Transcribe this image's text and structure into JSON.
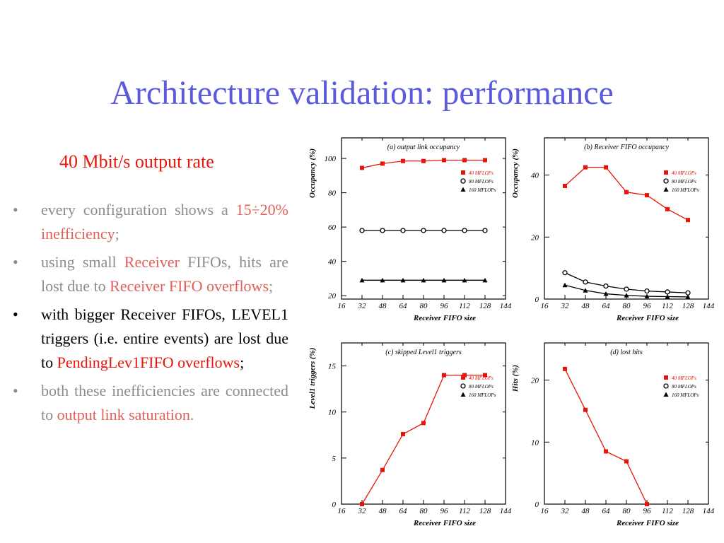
{
  "slide": {
    "title": "Architecture validation: performance",
    "subtitle": "40 Mbit/s output rate"
  },
  "bullets": [
    {
      "parts": [
        {
          "text": "every configuration shows a ",
          "style": "normal"
        },
        {
          "text": "15÷20% inefficiency",
          "style": "hl"
        },
        {
          "text": ";",
          "style": "normal"
        }
      ],
      "tone": "grey"
    },
    {
      "parts": [
        {
          "text": "using small ",
          "style": "normal"
        },
        {
          "text": "Receiver",
          "style": "hl"
        },
        {
          "text": " FIFOs, hits are lost due to ",
          "style": "normal"
        },
        {
          "text": "Receiver FIFO overflows",
          "style": "hl"
        },
        {
          "text": ";",
          "style": "normal"
        }
      ],
      "tone": "grey"
    },
    {
      "parts": [
        {
          "text": "with bigger Receiver FIFOs, LEVEL1 triggers (i.e. entire events) are lost due to ",
          "style": "normal"
        },
        {
          "text": "PendingLev1FIFO overflows",
          "style": "hl-strong"
        },
        {
          "text": ";",
          "style": "normal"
        }
      ],
      "tone": "dark"
    },
    {
      "parts": [
        {
          "text": "both these inefficiencies are connected to ",
          "style": "normal"
        },
        {
          "text": "output link saturation",
          "style": "hl"
        },
        {
          "text": ".",
          "style": "normal"
        }
      ],
      "tone": "grey"
    }
  ],
  "bullet_symbol": "•",
  "colors": {
    "title": "#5a5adc",
    "red_series": "#e8140a",
    "frame": "#000000"
  },
  "chart_data": [
    {
      "type": "line",
      "title": "(a) output link occupancy",
      "xlabel": "Receiver FIFO size",
      "ylabel": "Occupancy (%)",
      "xlim": [
        16,
        144
      ],
      "ylim": [
        18,
        112
      ],
      "xticks": [
        16,
        32,
        48,
        64,
        80,
        96,
        112,
        128,
        144
      ],
      "yticks": [
        20,
        40,
        60,
        80,
        100
      ],
      "legend": [
        "40 MFLOPs",
        "80 MFLOPs",
        "160 MFLOPs"
      ],
      "x": [
        32,
        48,
        64,
        80,
        96,
        112,
        128
      ],
      "series": [
        {
          "name": "40 MFLOPs",
          "values": [
            94.5,
            97,
            98.5,
            98.5,
            99,
            99,
            99
          ],
          "color": "#e8140a",
          "marker": "square"
        },
        {
          "name": "80 MFLOPs",
          "values": [
            58,
            58,
            58,
            58,
            58,
            58,
            58
          ],
          "color": "#000000",
          "marker": "circle"
        },
        {
          "name": "160 MFLOPs",
          "values": [
            29,
            29,
            29,
            29,
            29,
            29,
            29
          ],
          "color": "#000000",
          "marker": "triangle"
        }
      ]
    },
    {
      "type": "line",
      "title": "(b) Receiver FIFO occupancy",
      "xlabel": "Receiver FIFO size",
      "ylabel": "Occupancy (%)",
      "xlim": [
        16,
        144
      ],
      "ylim": [
        0,
        52
      ],
      "xticks": [
        16,
        32,
        48,
        64,
        80,
        96,
        112,
        128,
        144
      ],
      "yticks": [
        0,
        20,
        40
      ],
      "legend": [
        "40 MFLOPs",
        "80 MFLOPs",
        "160 MFLOPs"
      ],
      "x": [
        32,
        48,
        64,
        80,
        96,
        112,
        128
      ],
      "series": [
        {
          "name": "40 MFLOPs",
          "values": [
            36.5,
            42.5,
            42.5,
            34.5,
            33.5,
            29,
            25.5
          ],
          "color": "#e8140a",
          "marker": "square"
        },
        {
          "name": "80 MFLOPs",
          "values": [
            8.5,
            5.5,
            4.2,
            3.2,
            2.6,
            2.3,
            2.0
          ],
          "color": "#000000",
          "marker": "circle"
        },
        {
          "name": "160 MFLOPs",
          "values": [
            4.5,
            2.8,
            1.7,
            1.2,
            0.9,
            0.8,
            0.7
          ],
          "color": "#000000",
          "marker": "triangle"
        }
      ]
    },
    {
      "type": "line",
      "title": "(c) skipped Level1 triggers",
      "xlabel": "Receiver FIFO size",
      "ylabel": "Level1 triggers (%)",
      "xlim": [
        16,
        144
      ],
      "ylim": [
        0,
        17.5
      ],
      "xticks": [
        16,
        32,
        48,
        64,
        80,
        96,
        112,
        128,
        144
      ],
      "yticks": [
        0,
        5,
        10,
        15
      ],
      "legend": [
        "40 MFLOPs",
        "80 MFLOPs",
        "160 MFLOPs"
      ],
      "x": [
        32,
        48,
        64,
        80,
        96,
        112,
        128
      ],
      "series": [
        {
          "name": "40 MFLOPs",
          "values": [
            0,
            3.7,
            7.6,
            8.8,
            14,
            14,
            14
          ],
          "color": "#e8140a",
          "marker": "square"
        }
      ]
    },
    {
      "type": "line",
      "title": "(d) lost hits",
      "xlabel": "Receiver FIFO size",
      "ylabel": "Hits (%)",
      "xlim": [
        16,
        144
      ],
      "ylim": [
        0,
        26
      ],
      "xticks": [
        16,
        32,
        48,
        64,
        80,
        96,
        112,
        128,
        144
      ],
      "yticks": [
        0,
        10,
        20
      ],
      "legend": [
        "40 MFLOPs",
        "80 MFLOPs",
        "160 MFLOPs"
      ],
      "x": [
        32,
        48,
        64,
        80,
        96
      ],
      "series": [
        {
          "name": "40 MFLOPs",
          "values": [
            21.8,
            15.2,
            8.5,
            6.9,
            0
          ],
          "color": "#e8140a",
          "marker": "square"
        }
      ]
    }
  ]
}
